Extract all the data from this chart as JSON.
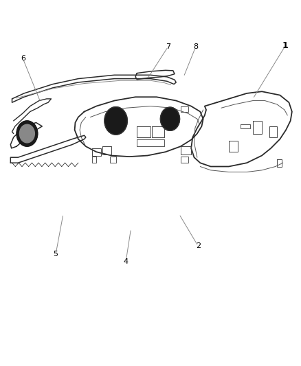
{
  "background_color": "#ffffff",
  "figure_width": 4.38,
  "figure_height": 5.33,
  "dpi": 100,
  "line_color": "#888888",
  "line_width": 0.7,
  "dark_color": "#2a2a2a",
  "mid_color": "#555555",
  "light_color": "#888888"
}
